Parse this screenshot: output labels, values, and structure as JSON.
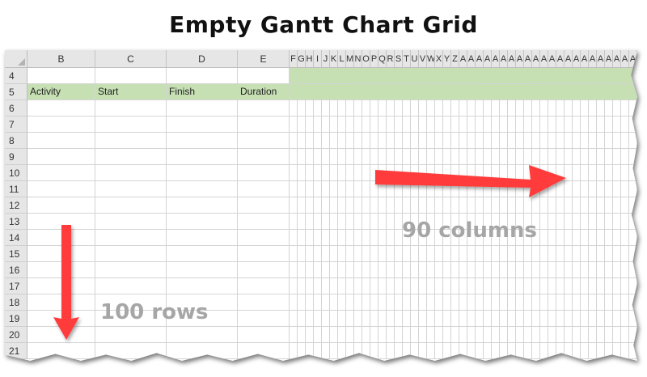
{
  "title": "Empty Gantt Chart Grid",
  "sheet": {
    "column_headers": {
      "B": "B",
      "C": "C",
      "D": "D",
      "E": "E",
      "narrow": [
        "F",
        "G",
        "H",
        "I",
        "J",
        "K",
        "L",
        "M",
        "N",
        "O",
        "P",
        "Q",
        "R",
        "S",
        "T",
        "U",
        "V",
        "W",
        "X",
        "Y",
        "Z",
        "A",
        "A",
        "A",
        "A",
        "A",
        "A",
        "A",
        "A",
        "A",
        "A",
        "A",
        "A",
        "A",
        "A",
        "A",
        "A",
        "A",
        "A",
        "A",
        "A",
        "A",
        "A"
      ]
    },
    "row_numbers": [
      "4",
      "5",
      "6",
      "7",
      "8",
      "9",
      "10",
      "11",
      "12",
      "13",
      "14",
      "15",
      "16",
      "17",
      "18",
      "19",
      "20",
      "21"
    ],
    "header_row": {
      "activity": "Activity",
      "start": "Start",
      "finish": "Finish",
      "duration": "Duration"
    },
    "header_fill_color": "#c6e0b4"
  },
  "annotations": {
    "columns": "90 columns",
    "rows": "100 rows",
    "arrow_color": "#ff3b3b",
    "text_color": "#a6a6a6"
  }
}
